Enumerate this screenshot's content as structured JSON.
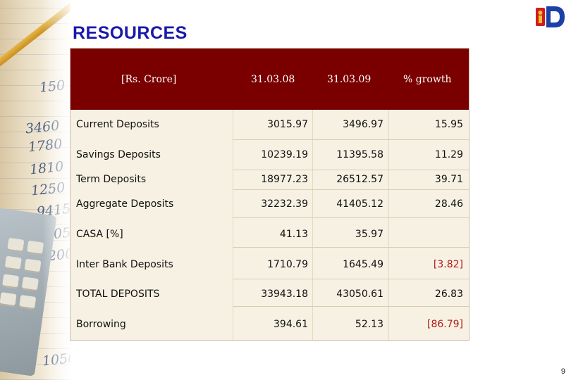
{
  "slide": {
    "title": "RESOURCES",
    "page_number": "9"
  },
  "table": {
    "header": {
      "unit": "[Rs. Crore]",
      "col1": "31.03.08",
      "col2": "31.03.09",
      "col3": "% growth"
    },
    "rows": [
      {
        "label": "Current Deposits",
        "v1": "3015.97",
        "v2": "3496.97",
        "v3": "15.95"
      },
      {
        "label": "Savings Deposits",
        "v1": "10239.19",
        "v2": "11395.58",
        "v3": "11.29"
      },
      {
        "label": "Term Deposits",
        "v1": "18977.23",
        "v2": "26512.57",
        "v3": "39.71"
      },
      {
        "label": "Aggregate Deposits",
        "v1": "32232.39",
        "v2": "41405.12",
        "v3": "28.46"
      },
      {
        "label": "CASA [%]",
        "v1": "41.13",
        "v2": "35.97",
        "v3": ""
      },
      {
        "label": "Inter Bank Deposits",
        "v1": "1710.79",
        "v2": "1645.49",
        "v3": "[3.82]"
      },
      {
        "label": "TOTAL DEPOSITS",
        "v1": "33943.18",
        "v2": "43050.61",
        "v3": "26.83"
      },
      {
        "label": "Borrowing",
        "v1": "394.61",
        "v2": "52.13",
        "v3": "[86.79]"
      }
    ]
  },
  "colors": {
    "title": "#1a1aa8",
    "header_bg": "#7a0000",
    "negative": "#b01a1a",
    "table_bg": "#f7f1e3"
  },
  "icons": {
    "logo": "bank-logo-icon"
  }
}
